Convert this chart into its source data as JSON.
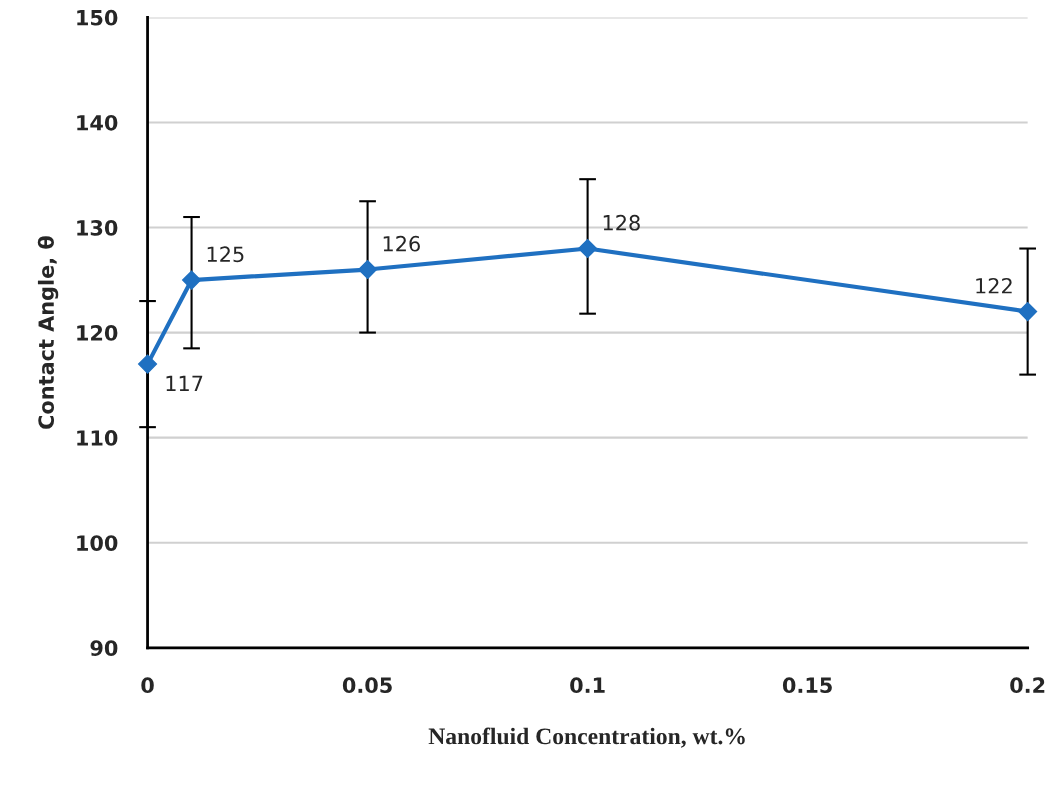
{
  "chart_data": {
    "type": "line",
    "xlabel": "Nanofluid Concentration, wt.%",
    "ylabel": "Contact Angle, θ",
    "x": [
      0,
      0.01,
      0.05,
      0.1,
      0.2
    ],
    "series": [
      {
        "color": "#1f70c1",
        "values": [
          117,
          125,
          126,
          128,
          122
        ],
        "errors": [
          [
            111,
            123
          ],
          [
            118.5,
            131
          ],
          [
            120,
            132.5
          ],
          [
            121.8,
            134.6
          ],
          [
            116,
            128
          ]
        ]
      }
    ],
    "xlim": [
      0,
      0.2
    ],
    "xticks": [
      0,
      0.05,
      0.1,
      0.15,
      0.2
    ],
    "ylim": [
      90,
      150
    ],
    "yticks": [
      90,
      100,
      110,
      120,
      130,
      140,
      150
    ],
    "grid": "y",
    "marker": "diamond",
    "line_style": "solid",
    "data_labels": true
  }
}
